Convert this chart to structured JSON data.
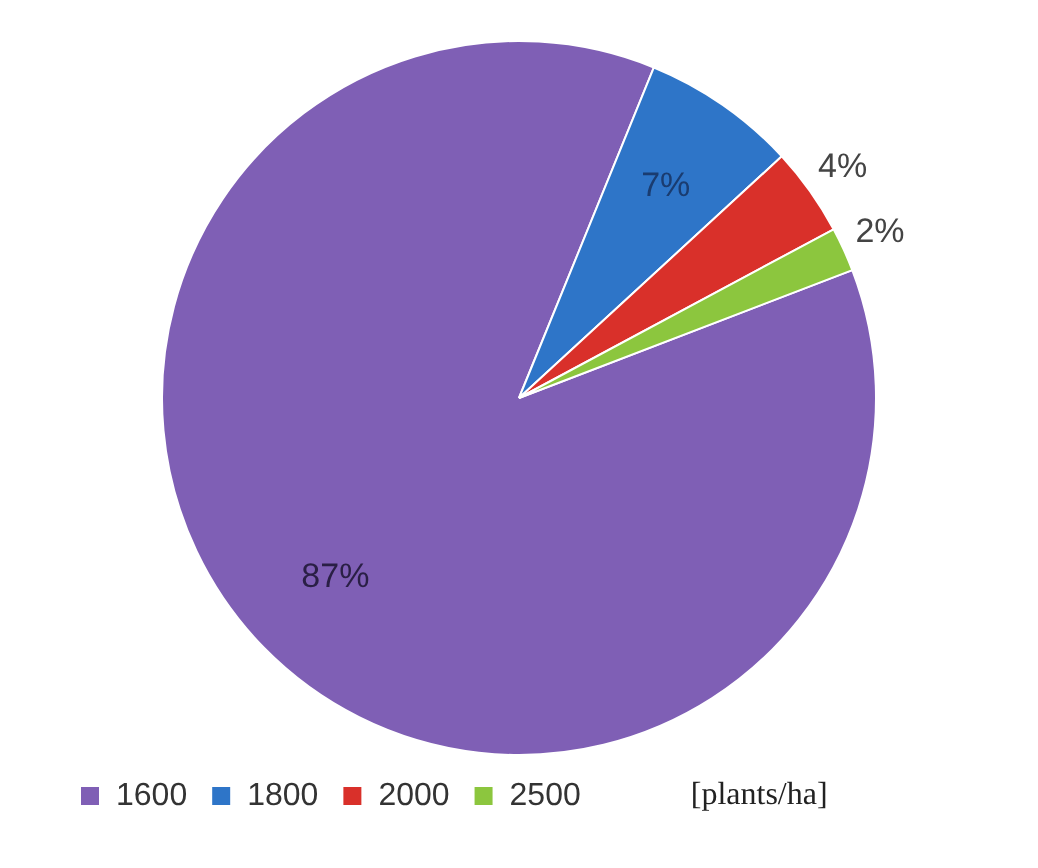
{
  "chart_data": {
    "type": "pie",
    "legend_title": "[plants/ha]",
    "categories": [
      "1600",
      "1800",
      "2000",
      "2500"
    ],
    "values": [
      87,
      7,
      4,
      2
    ],
    "value_labels": [
      "87%",
      "7%",
      "4%",
      "2%"
    ],
    "colors": [
      "#7f5fb5",
      "#2e75c8",
      "#d9302a",
      "#8cc63e"
    ],
    "legend": "bottom"
  }
}
